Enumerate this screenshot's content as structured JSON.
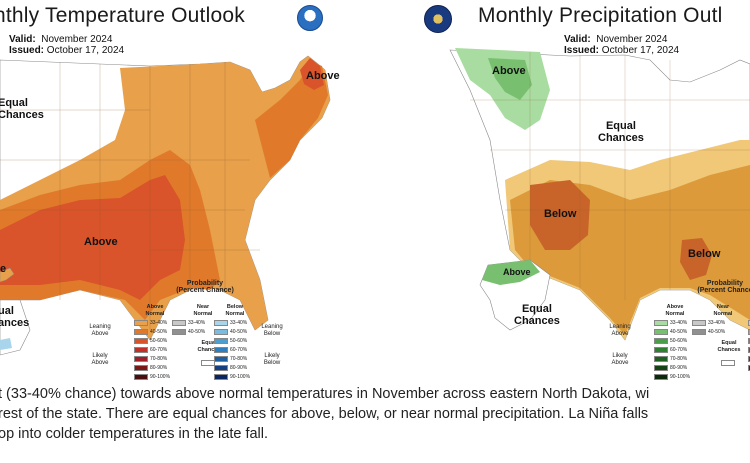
{
  "temperature": {
    "title": "nthly  Temperature Outlook",
    "valid_label": "Valid:",
    "valid_value": "November 2024",
    "issued_label": "Issued:",
    "issued_value": "October 17, 2024",
    "labels": {
      "above_ne": "Above",
      "equal_chances": "Equal\nChances",
      "above_south": "Above",
      "equal_west": "ual\nances",
      "above_ak": "e"
    },
    "legend": {
      "title": "Probability\n(Percent Chance)",
      "col_above": "Above\nNormal",
      "col_near": "Near\nNormal",
      "col_below": "Below\nNormal",
      "leaning_above": "Leaning\nAbove",
      "likely_above": "Likely\nAbove",
      "leaning_below": "Leaning\nBelow",
      "likely_below": "Likely\nBelow",
      "equal_chances": "Equal\nChances",
      "above_ranges": [
        "33-40%",
        "40-50%",
        "50-60%",
        "60-70%",
        "70-80%",
        "80-90%",
        "90-100%"
      ],
      "near_ranges": [
        "33-40%",
        "40-50%"
      ],
      "below_ranges": [
        "33-40%",
        "40-50%",
        "50-60%",
        "60-70%",
        "70-80%",
        "80-90%",
        "90-100%"
      ],
      "above_colors": [
        "#e8a04a",
        "#e07a2a",
        "#d9542a",
        "#c2302a",
        "#a0202a",
        "#7a1818",
        "#4a0e0e"
      ],
      "near_colors": [
        "#c8c8c8",
        "#909090"
      ],
      "below_colors": [
        "#a8d4ec",
        "#7cbce0",
        "#4d9fd0",
        "#2f7fbf",
        "#1f5fa0",
        "#143f80",
        "#0b2560"
      ]
    }
  },
  "precipitation": {
    "title": "Monthly  Precipitation Outl",
    "valid_label": "Valid:",
    "valid_value": "November 2024",
    "issued_label": "Issued:",
    "issued_value": "October 17, 2024",
    "labels": {
      "above_nw": "Above",
      "equal_chances": "Equal\nChances",
      "below_sw": "Below",
      "below_se": "Below",
      "above_ak": "Above",
      "equal_ak": "Equal\nChances"
    },
    "legend": {
      "title": "Probability\n(Percent Chance",
      "col_above": "Above\nNormal",
      "col_near": "Near\nNormal",
      "leaning_above": "Leaning\nAbove",
      "likely_above": "Likely\nAbove",
      "equal_chances": "Equal\nChances",
      "above_ranges": [
        "33-40%",
        "40-50%",
        "50-60%",
        "60-70%",
        "70-80%",
        "80-90%",
        "90-100%"
      ],
      "near_ranges": [
        "33-40%",
        "40-50%"
      ],
      "above_colors": [
        "#a8dca0",
        "#78c070",
        "#4aa048",
        "#2f8030",
        "#1f6020",
        "#144414",
        "#0b2a0b"
      ],
      "near_colors": [
        "#c8c8c8",
        "#909090"
      ]
    }
  },
  "caption": {
    "line1": "t (33-40% chance) towards above normal temperatures in November across eastern North Dakota, wi",
    "line2": "rest of the state. There are equal chances for above, below, or near normal precipitation. La Niña falls",
    "line3": "op into colder temperatures in the late fall."
  },
  "colors": {
    "temp_lean": "#e8a04a",
    "temp_40_50": "#e07a2a",
    "temp_50_60": "#d9542a",
    "precip_above_lean": "#a8dca0",
    "precip_above_40": "#78c070",
    "precip_below_lean": "#f0c878",
    "precip_below_40": "#dc9a3a",
    "precip_below_50": "#c8642a"
  }
}
